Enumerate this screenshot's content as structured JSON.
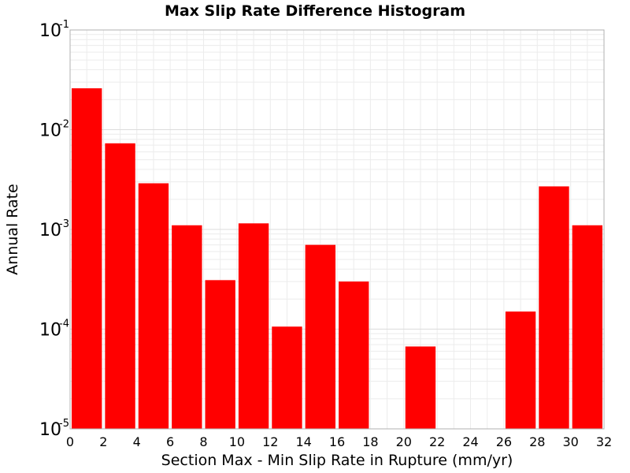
{
  "chart_data": {
    "type": "bar",
    "title": "Max Slip Rate Difference Histogram",
    "xlabel": "Section Max - Min Slip Rate in Rupture (mm/yr)",
    "ylabel": "Annual Rate",
    "xlim": [
      0,
      32
    ],
    "ylim": [
      1e-05,
      0.1
    ],
    "yscale": "log",
    "grid": true,
    "bar_color": "#ff0000",
    "bin_width": 2,
    "x_ticks": [
      "0",
      "2",
      "4",
      "6",
      "8",
      "10",
      "12",
      "14",
      "16",
      "18",
      "20",
      "22",
      "24",
      "26",
      "28",
      "30",
      "32"
    ],
    "y_ticks": [
      {
        "base": "10",
        "exp": "-5"
      },
      {
        "base": "10",
        "exp": "-4"
      },
      {
        "base": "10",
        "exp": "-3"
      },
      {
        "base": "10",
        "exp": "-2"
      },
      {
        "base": "10",
        "exp": "-1"
      }
    ],
    "bars": [
      {
        "x": 1,
        "value": 0.026
      },
      {
        "x": 3,
        "value": 0.0073
      },
      {
        "x": 5,
        "value": 0.0029
      },
      {
        "x": 7,
        "value": 0.0011
      },
      {
        "x": 9,
        "value": 0.00031
      },
      {
        "x": 11,
        "value": 0.00115
      },
      {
        "x": 13,
        "value": 0.000106
      },
      {
        "x": 15,
        "value": 0.0007
      },
      {
        "x": 17,
        "value": 0.0003
      },
      {
        "x": 21,
        "value": 6.7e-05
      },
      {
        "x": 27,
        "value": 0.00015
      },
      {
        "x": 29,
        "value": 0.0027
      },
      {
        "x": 31,
        "value": 0.0011
      }
    ]
  }
}
